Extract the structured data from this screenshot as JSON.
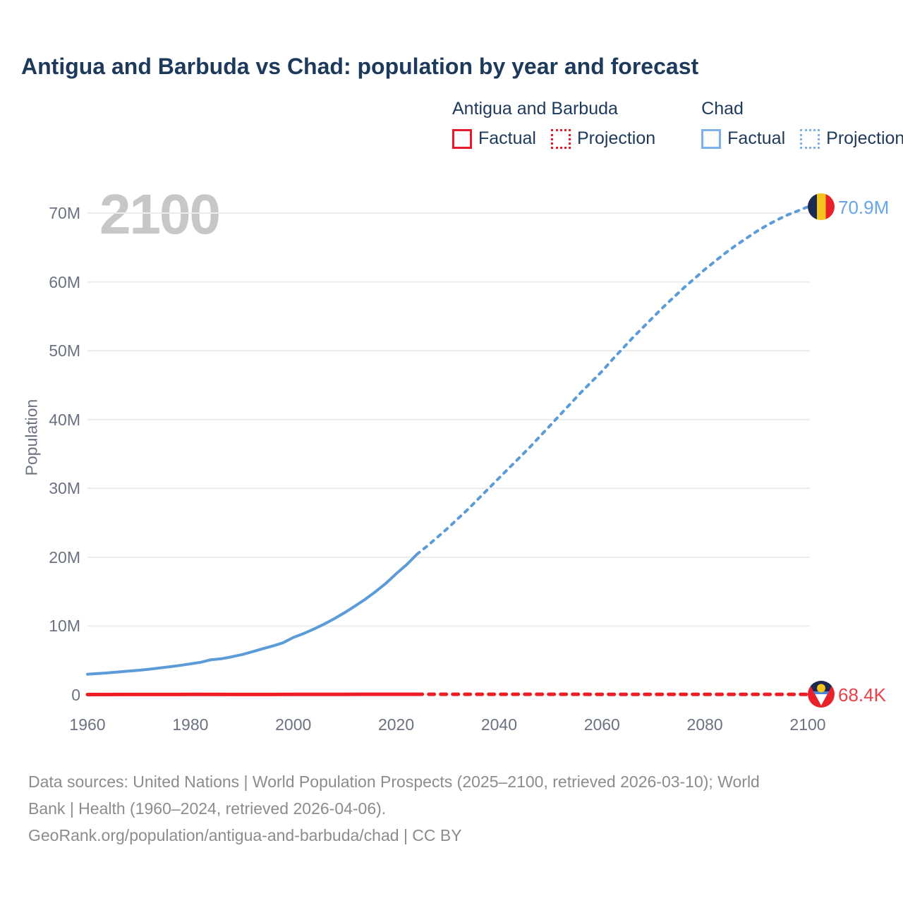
{
  "title": "Antigua and Barbuda vs Chad: population by year and forecast",
  "watermark": "2100",
  "legend": {
    "antigua": {
      "name": "Antigua and Barbuda",
      "factual_label": "Factual",
      "projection_label": "Projection"
    },
    "chad": {
      "name": "Chad",
      "factual_label": "Factual",
      "projection_label": "Projection"
    }
  },
  "end_labels": {
    "chad": "70.9M",
    "antigua": "68.4K"
  },
  "footer": {
    "sources_line1": "Data sources: United Nations | World Population Prospects (2025–2100, retrieved 2026-03-10); World",
    "sources_line2": "Bank | Health (1960–2024, retrieved 2026-04-06).",
    "attribution_line": "GeoRank.org/population/antigua-and-barbuda/chad | CC BY"
  },
  "colors": {
    "title_navy": "#1d3a5c",
    "axis_gray": "#6b7280",
    "gridline": "#ececec",
    "watermark_gray": "#c7c7c7",
    "chad_blue": "#5b9bd8",
    "antigua_red": "#ee1d25",
    "chad_label_blue": "#68a5e7",
    "antigua_label_red": "#ea404a",
    "footer_gray": "#8c8c8c"
  },
  "chart_data": {
    "type": "line",
    "title": "Antigua and Barbuda vs Chad: population by year and forecast",
    "xlabel": "",
    "ylabel": "Population",
    "xlim": [
      1960,
      2100
    ],
    "ylim_persons": [
      0,
      70000000
    ],
    "ymax_millions": 70,
    "grid": true,
    "legend_position": "top-right",
    "xticks": [
      1960,
      1980,
      2000,
      2020,
      2040,
      2060,
      2080,
      2100
    ],
    "yticks": [
      {
        "v": 70,
        "label": "70M"
      },
      {
        "v": 60,
        "label": "60M"
      },
      {
        "v": 50,
        "label": "50M"
      },
      {
        "v": 40,
        "label": "40M"
      },
      {
        "v": 30,
        "label": "30M"
      },
      {
        "v": 20,
        "label": "20M"
      },
      {
        "v": 10,
        "label": "10M"
      },
      {
        "v": 0,
        "label": "0"
      }
    ],
    "series": [
      {
        "name": "Chad — Factual",
        "style": "solid",
        "color": "#5b9bd8",
        "width": 4,
        "x": [
          1960,
          1962,
          1964,
          1966,
          1968,
          1970,
          1972,
          1974,
          1976,
          1978,
          1980,
          1982,
          1984,
          1986,
          1988,
          1990,
          1992,
          1994,
          1996,
          1998,
          2000,
          2002,
          2004,
          2006,
          2008,
          2010,
          2012,
          2014,
          2016,
          2018,
          2020,
          2022,
          2024
        ],
        "y_millions": [
          3.0,
          3.1,
          3.21,
          3.33,
          3.45,
          3.58,
          3.73,
          3.9,
          4.09,
          4.28,
          4.51,
          4.74,
          5.1,
          5.25,
          5.52,
          5.85,
          6.26,
          6.69,
          7.1,
          7.56,
          8.34,
          8.91,
          9.56,
          10.28,
          11.08,
          11.95,
          12.9,
          13.9,
          15.0,
          16.2,
          17.6,
          18.9,
          20.4
        ]
      },
      {
        "name": "Chad — Projection",
        "style": "dashed",
        "color": "#5b9bd8",
        "width": 4,
        "x": [
          2024,
          2026,
          2028,
          2030,
          2032,
          2034,
          2036,
          2038,
          2040,
          2042,
          2044,
          2046,
          2048,
          2050,
          2052,
          2054,
          2056,
          2058,
          2060,
          2062,
          2064,
          2066,
          2068,
          2070,
          2072,
          2074,
          2076,
          2078,
          2080,
          2082,
          2084,
          2086,
          2088,
          2090,
          2092,
          2094,
          2096,
          2098,
          2100
        ],
        "y_millions": [
          20.4,
          21.6,
          22.9,
          24.2,
          25.6,
          27.0,
          28.5,
          30.0,
          31.5,
          33.0,
          34.5,
          36.0,
          37.6,
          39.2,
          40.8,
          42.4,
          44.0,
          45.5,
          47.0,
          48.7,
          50.3,
          51.9,
          53.4,
          54.9,
          56.4,
          57.8,
          59.2,
          60.5,
          61.8,
          63.0,
          64.2,
          65.3,
          66.3,
          67.3,
          68.2,
          69.0,
          69.7,
          70.3,
          70.9
        ]
      },
      {
        "name": "Antigua and Barbuda — Factual",
        "style": "solid",
        "color": "#ee1d25",
        "width": 5,
        "x": [
          1960,
          1970,
          1980,
          1990,
          2000,
          2010,
          2020,
          2024
        ],
        "y_millions": [
          0.0547,
          0.0645,
          0.0686,
          0.0627,
          0.0758,
          0.0853,
          0.0927,
          0.094
        ]
      },
      {
        "name": "Antigua and Barbuda — Projection",
        "style": "dashed",
        "color": "#ee1d25",
        "width": 5,
        "x": [
          2024,
          2040,
          2060,
          2080,
          2100
        ],
        "y_millions": [
          0.094,
          0.092,
          0.086,
          0.078,
          0.0684
        ]
      }
    ],
    "endpoint_values": {
      "chad_2100": "70.9M",
      "antigua_2100": "68.4K"
    }
  }
}
